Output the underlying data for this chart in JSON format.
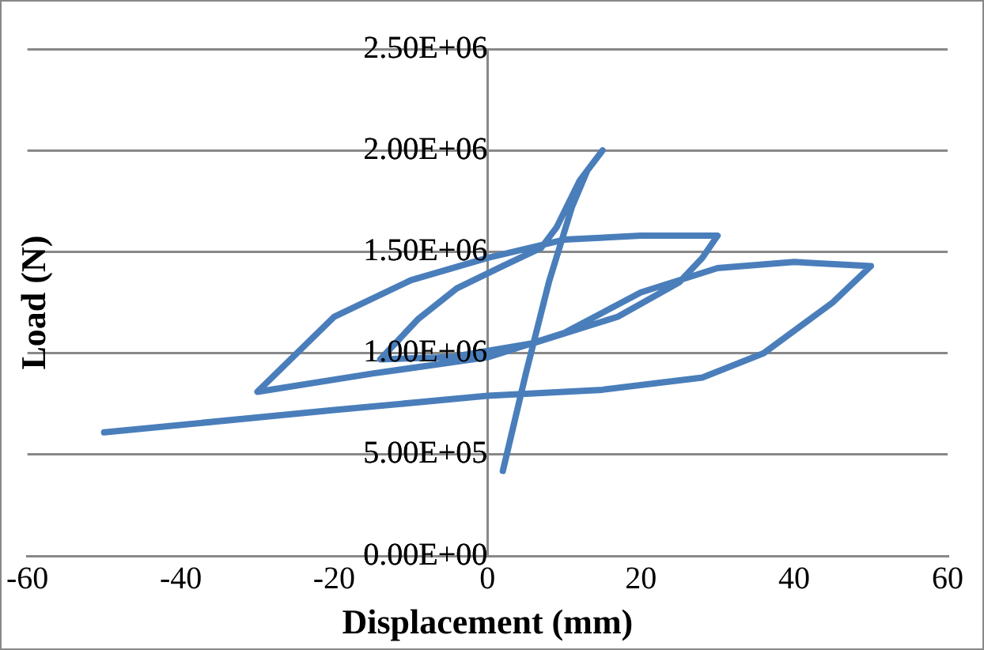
{
  "chart_data": {
    "type": "line",
    "xlabel": "Displacement (mm)",
    "ylabel": "Load (N)",
    "series": [
      {
        "color": "#4a7ebb",
        "x": [
          2,
          5,
          8,
          11,
          13,
          15,
          12,
          9,
          7,
          2,
          -4,
          -9,
          -14,
          -5,
          6,
          17,
          25,
          28,
          30,
          20,
          10,
          0,
          -10,
          -20,
          -30,
          -15,
          0,
          10,
          20,
          30,
          40,
          50,
          45,
          36,
          28,
          15,
          0,
          -20,
          -50
        ],
        "values": [
          420000,
          900000,
          1350000,
          1720000,
          1900000,
          2000000,
          1850000,
          1620000,
          1520000,
          1430000,
          1320000,
          1170000,
          970000,
          980000,
          1050000,
          1180000,
          1350000,
          1470000,
          1580000,
          1580000,
          1560000,
          1470000,
          1360000,
          1180000,
          810000,
          900000,
          980000,
          1100000,
          1300000,
          1420000,
          1450000,
          1430000,
          1250000,
          1000000,
          880000,
          820000,
          790000,
          720000,
          610000
        ]
      }
    ],
    "xlim": [
      -60,
      60
    ],
    "xticks": [
      -60,
      -40,
      -20,
      0,
      20,
      40,
      60
    ],
    "ylim": [
      0,
      2500000
    ],
    "yticks": [
      {
        "value": 0,
        "label": "0.00E+00"
      },
      {
        "value": 500000,
        "label": "5.00E+05"
      },
      {
        "value": 1000000,
        "label": "1.00E+06"
      },
      {
        "value": 1500000,
        "label": "1.50E+06"
      },
      {
        "value": 2000000,
        "label": "2.00E+06"
      },
      {
        "value": 2500000,
        "label": "2.50E+06"
      }
    ],
    "grid": "y",
    "legend": false,
    "marker": "none",
    "line_style": "solid"
  }
}
